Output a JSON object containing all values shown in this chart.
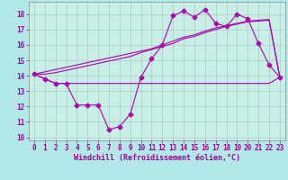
{
  "xlabel": "Windchill (Refroidissement éolien,°C)",
  "background_color": "#b3e8e8",
  "plot_bg": "#c8eee8",
  "label_bg": "#8844aa",
  "line_color": "#aa00aa",
  "x_hours": [
    0,
    1,
    2,
    3,
    4,
    5,
    6,
    7,
    8,
    9,
    10,
    11,
    12,
    13,
    14,
    15,
    16,
    17,
    18,
    19,
    20,
    21,
    22,
    23
  ],
  "temp_line": [
    14.1,
    13.8,
    13.5,
    13.5,
    12.1,
    12.1,
    12.1,
    10.5,
    10.7,
    11.5,
    13.9,
    15.1,
    16.0,
    17.9,
    18.2,
    17.8,
    18.3,
    17.4,
    17.2,
    18.0,
    17.7,
    16.1,
    14.7,
    13.9
  ],
  "flat_line": [
    14.1,
    13.8,
    13.5,
    13.5,
    13.5,
    13.5,
    13.5,
    13.5,
    13.5,
    13.5,
    13.5,
    13.5,
    13.5,
    13.5,
    13.5,
    13.5,
    13.5,
    13.5,
    13.5,
    13.5,
    13.5,
    13.5,
    13.5,
    13.9
  ],
  "trend1": [
    14.1,
    14.25,
    14.4,
    14.55,
    14.7,
    14.85,
    15.0,
    15.15,
    15.3,
    15.45,
    15.6,
    15.75,
    16.0,
    16.25,
    16.5,
    16.65,
    16.9,
    17.1,
    17.25,
    17.4,
    17.55,
    17.6,
    17.65,
    13.9
  ],
  "trend2": [
    14.1,
    14.1,
    14.2,
    14.35,
    14.5,
    14.65,
    14.8,
    14.95,
    15.1,
    15.25,
    15.5,
    15.7,
    15.9,
    16.1,
    16.4,
    16.55,
    16.8,
    17.0,
    17.2,
    17.35,
    17.5,
    17.55,
    17.6,
    13.9
  ],
  "ylim": [
    9.8,
    18.8
  ],
  "xlim": [
    -0.5,
    23.5
  ],
  "yticks": [
    10,
    11,
    12,
    13,
    14,
    15,
    16,
    17,
    18
  ],
  "xticks": [
    0,
    1,
    2,
    3,
    4,
    5,
    6,
    7,
    8,
    9,
    10,
    11,
    12,
    13,
    14,
    15,
    16,
    17,
    18,
    19,
    20,
    21,
    22,
    23
  ]
}
